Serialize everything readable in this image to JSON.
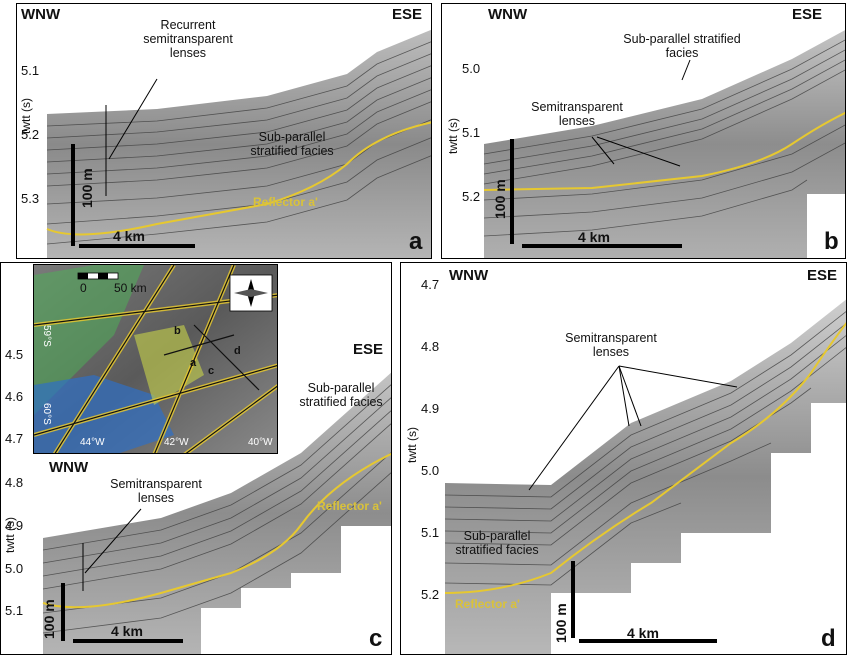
{
  "panels": [
    {
      "id": "a",
      "letter": "a",
      "left": "WNW",
      "right": "ESE",
      "yaxis": "twtt (s)",
      "ticks": [
        "5.1",
        "5.2",
        "5.3"
      ],
      "annotations": [
        "Recurrent semitransparent lenses",
        "Sub-parallel stratified facies"
      ],
      "reflector": "Reflector a'",
      "hscale": "4 km",
      "vscale": "100 m"
    },
    {
      "id": "b",
      "letter": "b",
      "left": "WNW",
      "right": "ESE",
      "yaxis": "twtt (s)",
      "ticks": [
        "5.0",
        "5.1",
        "5.2"
      ],
      "annotations": [
        "Sub-parallel stratified facies",
        "Semitransparent lenses"
      ],
      "hscale": "4 km",
      "vscale": "100 m"
    },
    {
      "id": "c",
      "letter": "c",
      "left": "WNW",
      "right": "ESE",
      "yaxis": "twtt (s)",
      "ticks": [
        "4.5",
        "4.6",
        "4.7",
        "4.8",
        "4.9",
        "5.0",
        "5.1"
      ],
      "annotations": [
        "Sub-parallel stratified facies",
        "Semitransparent lenses"
      ],
      "reflector": "Reflector a'",
      "hscale": "4 km",
      "vscale": "100 m"
    },
    {
      "id": "d",
      "letter": "d",
      "left": "WNW",
      "right": "ESE",
      "yaxis": "twtt (s)",
      "ticks": [
        "4.7",
        "4.8",
        "4.9",
        "5.0",
        "5.1",
        "5.2"
      ],
      "annotations": [
        "Semitransparent lenses",
        "Sub-parallel stratified facies"
      ],
      "reflector": "Reflector a'",
      "hscale": "4 km",
      "vscale": "100 m"
    }
  ],
  "inset": {
    "scale_start": "0",
    "scale_end": "50 km",
    "lat1": "59°S",
    "lat2": "60°S",
    "lon1": "44°W",
    "lon2": "42°W",
    "lon3": "40°W",
    "labels": [
      "a",
      "b",
      "c",
      "d"
    ]
  },
  "colors": {
    "reflector": "#e6c830",
    "seismic_dark": "#3a3a3a",
    "seismic_light": "#c8c8c8"
  }
}
